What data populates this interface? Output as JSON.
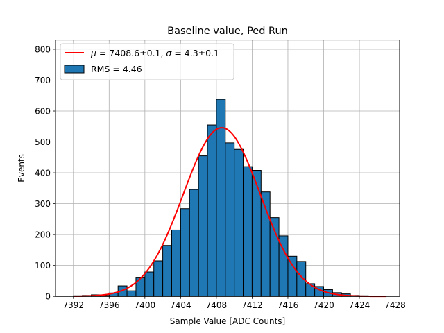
{
  "chart_data": {
    "type": "bar",
    "title": "Baseline value, Ped Run",
    "xlabel": "Sample Value [ADC Counts]",
    "ylabel": "Events",
    "xlim": [
      7390,
      7428.5
    ],
    "ylim": [
      0,
      830
    ],
    "x_ticks": [
      7392,
      7396,
      7400,
      7404,
      7408,
      7412,
      7416,
      7420,
      7424,
      7428
    ],
    "y_ticks": [
      0,
      100,
      200,
      300,
      400,
      500,
      600,
      700,
      800
    ],
    "grid": true,
    "legend_position": "top-left",
    "histogram": {
      "name": "RMS = 4.46",
      "color": "#1f77b4",
      "edge_color": "#000000",
      "bin_edges": [
        7392,
        7393,
        7394,
        7395,
        7396,
        7397,
        7398,
        7399,
        7400,
        7401,
        7402,
        7403,
        7404,
        7405,
        7406,
        7407,
        7408,
        7409,
        7410,
        7411,
        7412,
        7413,
        7414,
        7415,
        7416,
        7417,
        7418,
        7419,
        7420,
        7421,
        7422,
        7423,
        7424,
        7425,
        7426,
        7427
      ],
      "counts": [
        2,
        3,
        5,
        3,
        11,
        34,
        18,
        62,
        79,
        115,
        165,
        215,
        284,
        346,
        455,
        555,
        638,
        497,
        476,
        420,
        408,
        338,
        255,
        196,
        130,
        113,
        41,
        32,
        22,
        12,
        8,
        3,
        2,
        1,
        1
      ]
    },
    "fit": {
      "name_parts": {
        "mu_label": "μ",
        "mu_value": " = 7408.6±0.1, ",
        "sigma_label": "σ",
        "sigma_value": " = 4.3±0.1"
      },
      "type": "gaussian",
      "color": "#ff0000",
      "mu": 7408.6,
      "sigma": 4.3,
      "amplitude": 546,
      "x_range": [
        7392,
        7427
      ]
    }
  }
}
